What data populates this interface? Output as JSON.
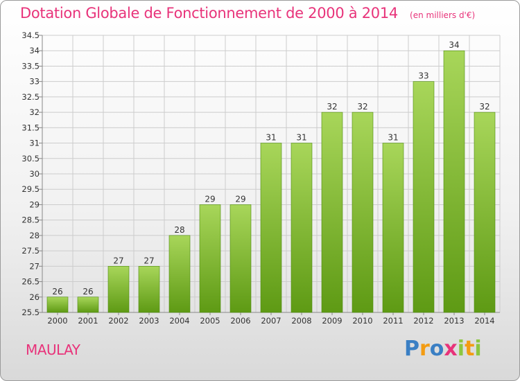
{
  "header": {
    "title": "Dotation Globale de Fonctionnement de 2000 à 2014",
    "unit": "(en milliers d'€)"
  },
  "footer": {
    "commune": "MAULAY",
    "logo_text": "Proxiti",
    "logo_letters": [
      "P",
      "r",
      "o",
      "x",
      "i",
      "t",
      "i"
    ],
    "logo_colors": [
      "#3a7fc4",
      "#f39c12",
      "#3a7fc4",
      "#e8337a",
      "#8cc63f",
      "#f39c12",
      "#8cc63f"
    ]
  },
  "chart_data": {
    "type": "bar",
    "title": "Dotation Globale de Fonctionnement de 2000 à 2014",
    "unit": "(en milliers d'€)",
    "categories": [
      "2000",
      "2001",
      "2002",
      "2003",
      "2004",
      "2005",
      "2006",
      "2007",
      "2008",
      "2009",
      "2010",
      "2011",
      "2012",
      "2013",
      "2014"
    ],
    "values": [
      26,
      26,
      27,
      27,
      28,
      29,
      29,
      31,
      31,
      32,
      32,
      31,
      33,
      34,
      32
    ],
    "labels": [
      "26",
      "26",
      "27",
      "27",
      "28",
      "29",
      "29",
      "31",
      "31",
      "32",
      "32",
      "31",
      "33",
      "34",
      "32"
    ],
    "ylim": [
      25.5,
      34.5
    ],
    "yticks": [
      "25.5",
      "26",
      "26.5",
      "27",
      "27.5",
      "28",
      "28.5",
      "29",
      "29.5",
      "30",
      "30.5",
      "31",
      "31.5",
      "32",
      "32.5",
      "33",
      "33.5",
      "34",
      "34.5"
    ],
    "grid": true,
    "colors": {
      "bar_light": "#a8d65a",
      "bar_dark": "#5e9a14",
      "bar_edge": "#4d8a0e",
      "grid": "#cccccc"
    }
  }
}
